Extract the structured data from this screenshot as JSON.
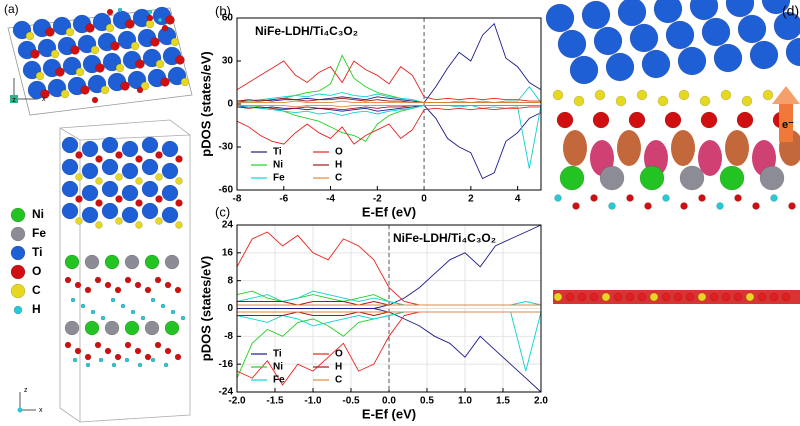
{
  "structure": {
    "a": {
      "label": "(a)",
      "legend": [
        "Ni",
        "Fe",
        "Ti",
        "O",
        "C",
        "H"
      ],
      "colors": [
        "#22c322",
        "#8c8c96",
        "#1f5fd6",
        "#d01010",
        "#e6d820",
        "#28c8d8"
      ],
      "axes_top": [
        "z",
        "x"
      ],
      "axes_bottom": [
        "z",
        "x"
      ]
    },
    "d": {
      "label": "(d)",
      "annotation": "e⁻"
    }
  },
  "chart_data": [
    {
      "type": "line",
      "label": "(b)",
      "title": "NiFe-LDH/Ti₄C₃O₂",
      "xlabel": "E-Ef (eV)",
      "ylabel": "pDOS (states/eV)",
      "x": [
        -8,
        -7.5,
        -7,
        -6.5,
        -6,
        -5.5,
        -5,
        -4.5,
        -4,
        -3.5,
        -3,
        -2.5,
        -2,
        -1.5,
        -1,
        -0.5,
        0,
        0.5,
        1,
        1.5,
        2,
        2.5,
        3,
        3.5,
        4,
        4.5,
        5
      ],
      "xlim": [
        -8,
        5
      ],
      "xticks": [
        -8,
        -6,
        -4,
        -2,
        0,
        2,
        4
      ],
      "ylim": [
        -60,
        60
      ],
      "yticks": [
        -60,
        -30,
        0,
        30,
        60
      ],
      "vline": 0,
      "grid": false,
      "legend": "lower left",
      "series": [
        {
          "name": "Ti",
          "color": "#1c1c8a",
          "values": [
            2,
            2,
            3,
            2,
            3,
            3,
            4,
            3,
            4,
            5,
            4,
            3,
            5,
            4,
            3,
            2,
            1,
            12,
            25,
            36,
            30,
            48,
            56,
            32,
            26,
            15,
            10
          ],
          "values_down": [
            -2,
            -2,
            -3,
            -2,
            -3,
            -3,
            -4,
            -3,
            -4,
            -5,
            -4,
            -3,
            -5,
            -4,
            -3,
            -2,
            -1,
            -10,
            -24,
            -30,
            -34,
            -52,
            -48,
            -26,
            -20,
            -10,
            -6
          ]
        },
        {
          "name": "Ni",
          "color": "#22d022",
          "values": [
            1,
            1,
            2,
            3,
            4,
            6,
            8,
            9,
            14,
            34,
            18,
            12,
            8,
            6,
            4,
            3,
            1,
            1,
            1,
            1,
            1,
            1,
            1,
            1,
            1,
            1,
            1
          ],
          "values_down": [
            -1,
            -1,
            -2,
            -3,
            -5,
            -8,
            -10,
            -12,
            -16,
            -20,
            -22,
            -26,
            -14,
            -8,
            -5,
            -3,
            -1,
            -1,
            -1,
            -1,
            -1,
            -1,
            -1,
            -1,
            -1,
            -1,
            -1
          ]
        },
        {
          "name": "Fe",
          "color": "#10d0d0",
          "values": [
            1,
            2,
            3,
            4,
            5,
            6,
            5,
            7,
            6,
            8,
            6,
            5,
            7,
            5,
            4,
            3,
            1,
            1,
            1,
            2,
            1,
            2,
            1,
            2,
            2,
            12,
            1
          ],
          "values_down": [
            -1,
            -2,
            -3,
            -4,
            -5,
            -6,
            -5,
            -7,
            -6,
            -8,
            -6,
            -5,
            -7,
            -5,
            -4,
            -3,
            -1,
            -1,
            -1,
            -2,
            -1,
            -3,
            -2,
            -3,
            -2,
            -45,
            -1
          ]
        },
        {
          "name": "O",
          "color": "#e8231f",
          "values": [
            10,
            15,
            20,
            25,
            30,
            20,
            15,
            22,
            26,
            15,
            30,
            24,
            20,
            14,
            26,
            20,
            5,
            3,
            4,
            3,
            4,
            3,
            4,
            3,
            3,
            2,
            2
          ],
          "values_down": [
            -12,
            -16,
            -22,
            -26,
            -28,
            -20,
            -14,
            -20,
            -24,
            -16,
            -28,
            -22,
            -18,
            -14,
            -24,
            -18,
            -4,
            -3,
            -4,
            -3,
            -4,
            -3,
            -4,
            -3,
            -3,
            -2,
            -2
          ]
        },
        {
          "name": "H",
          "color": "#a01818",
          "values": [
            2,
            3,
            2,
            3,
            4,
            3,
            2,
            3,
            3,
            4,
            3,
            2,
            3,
            2,
            2,
            1,
            1,
            1,
            1,
            1,
            1,
            1,
            1,
            1,
            1,
            1,
            1
          ],
          "values_down": [
            -2,
            -3,
            -2,
            -3,
            -4,
            -3,
            -2,
            -3,
            -3,
            -4,
            -3,
            -2,
            -3,
            -2,
            -2,
            -1,
            -1,
            -1,
            -1,
            -1,
            -1,
            -1,
            -1,
            -1,
            -1,
            -1,
            -1
          ]
        },
        {
          "name": "C",
          "color": "#e08a40",
          "values": [
            1,
            1,
            1,
            1,
            1,
            2,
            1,
            1,
            1,
            2,
            1,
            1,
            1,
            1,
            1,
            1,
            1,
            1,
            1,
            1,
            1,
            1,
            1,
            1,
            1,
            1,
            1
          ],
          "values_down": [
            -1,
            -1,
            -1,
            -1,
            -1,
            -2,
            -1,
            -1,
            -1,
            -2,
            -1,
            -1,
            -1,
            -1,
            -1,
            -1,
            -1,
            -1,
            -1,
            -1,
            -1,
            -1,
            -1,
            -1,
            -1,
            -1,
            -1
          ]
        }
      ]
    },
    {
      "type": "line",
      "label": "(c)",
      "title": "NiFe-LDH/Ti₄C₃O₂",
      "xlabel": "E-Ef (eV)",
      "ylabel": "pDOS (states/eV)",
      "x": [
        -2,
        -1.8,
        -1.6,
        -1.4,
        -1.2,
        -1,
        -0.8,
        -0.6,
        -0.4,
        -0.2,
        0,
        0.2,
        0.4,
        0.6,
        0.8,
        1,
        1.2,
        1.4,
        1.6,
        1.8,
        2
      ],
      "xlim": [
        -2,
        2
      ],
      "xticks": [
        {
          "value": -2,
          "label": "-2.0"
        },
        -1.5,
        {
          "value": -1,
          "label": "-1.0"
        },
        -0.5,
        {
          "value": 0,
          "label": "0.0"
        },
        0.5,
        {
          "value": 1,
          "label": "1.0"
        },
        1.5,
        {
          "value": 2,
          "label": "2.0"
        }
      ],
      "ylim": [
        -24,
        24
      ],
      "yticks": [
        -24,
        -16,
        -8,
        0,
        8,
        16,
        24
      ],
      "vline": 0,
      "grid": true,
      "legend": "lower left",
      "series": [
        {
          "name": "Ti",
          "color": "#1c1c8a",
          "values": [
            0,
            0,
            0,
            0,
            0,
            0,
            0,
            0,
            0,
            0,
            1,
            3,
            6,
            10,
            14,
            16,
            12,
            18,
            20,
            22,
            24
          ],
          "values_down": [
            0,
            0,
            0,
            0,
            0,
            0,
            0,
            0,
            0,
            0,
            -1,
            -3,
            -5,
            -8,
            -10,
            -14,
            -8,
            -12,
            -16,
            -20,
            -24
          ]
        },
        {
          "name": "Ni",
          "color": "#22d022",
          "values": [
            4,
            5,
            3,
            2,
            3,
            4,
            3,
            2,
            3,
            4,
            2,
            1,
            1,
            1,
            1,
            1,
            1,
            1,
            1,
            1,
            1
          ],
          "values_down": [
            -20,
            -10,
            -6,
            -8,
            -4,
            -3,
            -5,
            -8,
            -4,
            -3,
            -2,
            -1,
            -1,
            -1,
            -1,
            -1,
            -1,
            -1,
            -1,
            -1,
            -1
          ]
        },
        {
          "name": "Fe",
          "color": "#10d0d0",
          "values": [
            2,
            3,
            4,
            2,
            3,
            5,
            4,
            3,
            2,
            3,
            2,
            1,
            1,
            1,
            1,
            1,
            1,
            1,
            1,
            2,
            1
          ],
          "values_down": [
            -2,
            -3,
            -4,
            -2,
            -3,
            -5,
            -4,
            -3,
            -2,
            -3,
            -2,
            -1,
            -1,
            -1,
            -1,
            -1,
            -1,
            -1,
            -1,
            -18,
            -1
          ]
        },
        {
          "name": "O",
          "color": "#e8231f",
          "values": [
            12,
            20,
            22,
            18,
            21,
            16,
            14,
            20,
            18,
            14,
            6,
            2,
            1,
            1,
            1,
            1,
            1,
            1,
            1,
            1,
            1
          ],
          "values_down": [
            -18,
            -20,
            -15,
            -22,
            -16,
            -18,
            -14,
            -10,
            -18,
            -16,
            -8,
            -2,
            -1,
            -1,
            -1,
            -1,
            -1,
            -1,
            -1,
            -1,
            -1
          ]
        },
        {
          "name": "H",
          "color": "#a01818",
          "values": [
            2,
            2,
            2,
            2,
            1,
            2,
            2,
            2,
            1,
            2,
            1,
            1,
            1,
            1,
            1,
            1,
            1,
            1,
            1,
            1,
            1
          ],
          "values_down": [
            -2,
            -2,
            -2,
            -2,
            -1,
            -2,
            -2,
            -2,
            -1,
            -2,
            -1,
            -1,
            -1,
            -1,
            -1,
            -1,
            -1,
            -1,
            -1,
            -1,
            -1
          ]
        },
        {
          "name": "C",
          "color": "#e08a40",
          "values": [
            1,
            1,
            1,
            1,
            1,
            1,
            1,
            1,
            1,
            1,
            1,
            1,
            1,
            1,
            1,
            1,
            1,
            1,
            1,
            1,
            1
          ],
          "values_down": [
            -1,
            -1,
            -1,
            -1,
            -1,
            -1,
            -1,
            -1,
            -1,
            -1,
            -1,
            -1,
            -1,
            -1,
            -1,
            -1,
            -1,
            -1,
            -1,
            -1,
            -1
          ]
        }
      ]
    }
  ]
}
